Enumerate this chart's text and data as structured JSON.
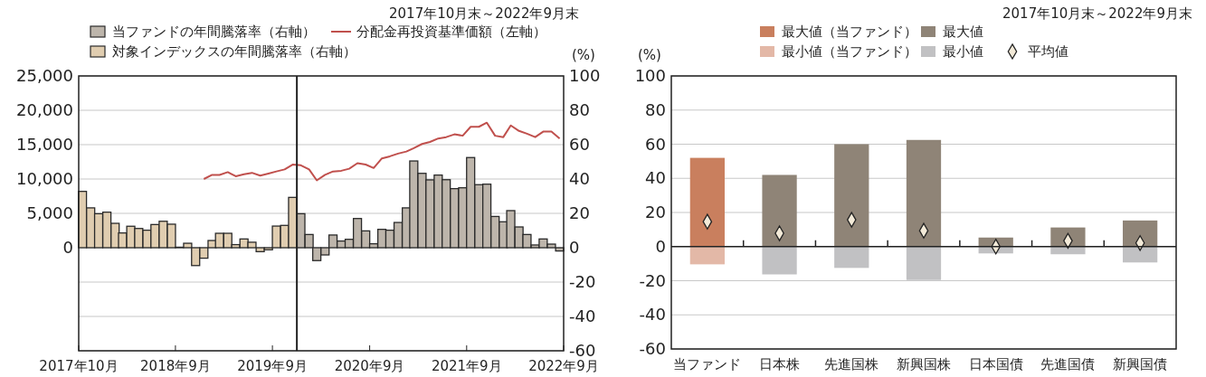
{
  "chart_data": [
    {
      "type": "bar",
      "title": "2017年10月末～2022年9月末",
      "y2label": "(%)",
      "legend": "top",
      "grid": "y",
      "x": [
        "2017-10-15",
        "2017-11-15",
        "2017-12-15",
        "2018-01-15",
        "2018-02-15",
        "2018-03-15",
        "2018-04-15",
        "2018-05-15",
        "2018-06-15",
        "2018-07-15",
        "2018-08-15",
        "2018-09-15",
        "2018-10-15",
        "2018-11-15",
        "2018-12-15",
        "2019-01-15",
        "2019-02-15",
        "2019-03-15",
        "2019-04-15",
        "2019-05-15",
        "2019-06-15",
        "2019-07-15",
        "2019-08-15",
        "2019-09-15",
        "2019-10-15",
        "2019-11-15",
        "2019-12-15",
        "2020-01-15",
        "2020-02-15",
        "2020-03-15",
        "2020-04-15",
        "2020-05-15",
        "2020-06-15",
        "2020-07-15",
        "2020-08-15",
        "2020-09-15",
        "2020-10-15",
        "2020-11-15",
        "2020-12-15",
        "2021-01-15",
        "2021-02-15",
        "2021-03-15",
        "2021-04-15",
        "2021-05-15",
        "2021-06-15",
        "2021-07-15",
        "2021-08-15",
        "2021-09-15",
        "2021-10-15",
        "2021-11-15",
        "2021-12-15",
        "2022-01-15",
        "2022-02-15",
        "2022-03-15",
        "2022-04-15",
        "2022-05-15",
        "2022-06-15",
        "2022-07-15",
        "2022-08-15",
        "2022-09-15"
      ],
      "xlim": [
        "2017-10-01",
        "2022-09-30"
      ],
      "xticks": [
        {
          "value": "2017-10-01",
          "label": "2017年10月"
        },
        {
          "value": "2018-09-30",
          "label": "2018年9月"
        },
        {
          "value": "2019-09-30",
          "label": "2019年9月"
        },
        {
          "value": "2020-09-30",
          "label": "2020年9月"
        },
        {
          "value": "2021-09-30",
          "label": "2021年9月"
        },
        {
          "value": "2022-09-30",
          "label": "2022年9月"
        }
      ],
      "ylim": [
        -15000,
        25000
      ],
      "yticks": [
        {
          "value": 0,
          "label": "0"
        },
        {
          "value": 5000,
          "label": "5,000"
        },
        {
          "value": 10000,
          "label": "10,000"
        },
        {
          "value": 15000,
          "label": "15,000"
        },
        {
          "value": 20000,
          "label": "20,000"
        },
        {
          "value": 25000,
          "label": "25,000"
        }
      ],
      "y2lim": [
        -60,
        100
      ],
      "y2ticks": [
        -60,
        -40,
        -20,
        0,
        20,
        40,
        60,
        80,
        100
      ],
      "ref_lines": [
        {
          "axis": "x",
          "value": "2019-12-31",
          "color": "#222222"
        }
      ],
      "series": [
        {
          "name": "当ファンドの年間騰落率（右軸）",
          "color": "#bdb5ab",
          "axis": "y2",
          "values": [
            null,
            null,
            null,
            null,
            null,
            null,
            null,
            null,
            null,
            null,
            null,
            null,
            null,
            null,
            null,
            null,
            null,
            null,
            null,
            null,
            null,
            null,
            null,
            null,
            null,
            null,
            null,
            19.8,
            7.7,
            -7.5,
            -4.2,
            7.4,
            3.9,
            4.9,
            17,
            9.8,
            2.3,
            10.7,
            10.2,
            14.7,
            23.2,
            50.5,
            43.3,
            39.5,
            42.3,
            39.6,
            34.4,
            34.9,
            52.5,
            36.7,
            37,
            18.2,
            15.1,
            21.6,
            12.1,
            7.7,
            1.6,
            5.1,
            2.1,
            -1.9
          ]
        },
        {
          "name": "分配金再投資基準価額（左軸）",
          "type": "line",
          "color": "#c0504d",
          "x": [
            "2019-01-15",
            "2019-02-15",
            "2019-03-15",
            "2019-04-15",
            "2019-05-15",
            "2019-06-15",
            "2019-07-15",
            "2019-08-15",
            "2019-09-15",
            "2019-10-15",
            "2019-11-15",
            "2019-12-15",
            "2020-01-15",
            "2020-02-15",
            "2020-03-15",
            "2020-04-15",
            "2020-05-15",
            "2020-06-15",
            "2020-07-15",
            "2020-08-15",
            "2020-09-15",
            "2020-10-15",
            "2020-11-15",
            "2020-12-15",
            "2021-01-15",
            "2021-02-15",
            "2021-03-15",
            "2021-04-15",
            "2021-05-15",
            "2021-06-15",
            "2021-07-15",
            "2021-08-15",
            "2021-09-15",
            "2021-10-15",
            "2021-11-15",
            "2021-12-15",
            "2022-01-15",
            "2022-02-15",
            "2022-03-15",
            "2022-04-15",
            "2022-05-15",
            "2022-06-15",
            "2022-07-15",
            "2022-08-15",
            "2022-09-15"
          ],
          "values": [
            10000,
            10600,
            10600,
            11000,
            10400,
            10700,
            10900,
            10500,
            10800,
            11100,
            11400,
            12100,
            12000,
            11400,
            9800,
            10600,
            11100,
            11200,
            11500,
            12300,
            12100,
            11600,
            13000,
            13300,
            13700,
            14000,
            14500,
            15100,
            15400,
            15900,
            16100,
            16500,
            16300,
            17600,
            17600,
            18200,
            16300,
            16100,
            17800,
            17000,
            16600,
            16100,
            16900,
            16900,
            15900
          ]
        },
        {
          "name": "対象インデックスの年間騰落率（右軸）",
          "color": "#e0cdb0",
          "axis": "y2",
          "values": [
            32.8,
            23.2,
            19.8,
            20.7,
            14.2,
            8.6,
            12.5,
            11.2,
            10.2,
            13.5,
            15.4,
            13.7,
            0.3,
            2.6,
            -10.4,
            -6.1,
            4.2,
            8.4,
            8.4,
            1.8,
            5.1,
            3.2,
            -2.3,
            -1.2,
            12.6,
            13,
            29.3,
            null,
            null,
            null,
            null,
            null,
            null,
            null,
            null,
            null,
            null,
            null,
            null,
            null,
            null,
            null,
            null,
            null,
            null,
            null,
            null,
            null,
            null,
            null,
            null,
            null,
            null,
            null,
            null,
            null,
            null,
            null,
            null,
            null
          ]
        }
      ]
    },
    {
      "type": "bar",
      "title": "2017年10月末～2022年9月末",
      "ylabel": "(%)",
      "legend": "top",
      "grid": "y",
      "stacked": true,
      "categories": [
        "当ファンド",
        "日本株",
        "先進国株",
        "新興国株",
        "日本国債",
        "先進国債",
        "新興国債"
      ],
      "ylim": [
        -60,
        100
      ],
      "yticks": [
        -60,
        -40,
        -20,
        0,
        20,
        40,
        60,
        80,
        100
      ],
      "series": [
        {
          "name": "最大値（当ファンド）",
          "color": "#c97f5e",
          "values": [
            52,
            null,
            null,
            null,
            null,
            null,
            null
          ]
        },
        {
          "name": "最大値",
          "color": "#8f8477",
          "values": [
            null,
            42,
            60,
            62.5,
            5.3,
            11.2,
            15.3
          ]
        },
        {
          "name": "最小値（当ファンド）",
          "color": "#e3b8a7",
          "values": [
            -10.4,
            null,
            null,
            null,
            null,
            null,
            null
          ]
        },
        {
          "name": "最小値",
          "color": "#c1c1c3",
          "values": [
            null,
            -16.3,
            -12.5,
            -19.6,
            -4,
            -4.5,
            -9.3
          ]
        },
        {
          "name": "平均値",
          "type": "scatter",
          "marker": "diamond",
          "color": "#f3ead8",
          "x": [
            "当ファンド",
            "日本株",
            "先進国株",
            "新興国株",
            "日本国債",
            "先進国債",
            "新興国債"
          ],
          "values": [
            14.6,
            7.8,
            15.7,
            9.3,
            0,
            3.4,
            2.1
          ]
        }
      ]
    }
  ]
}
